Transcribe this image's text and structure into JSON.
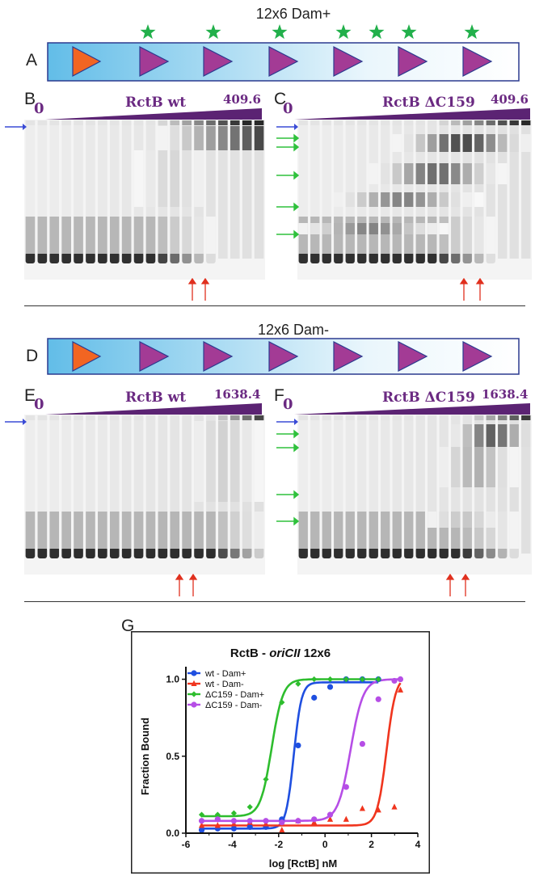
{
  "panels": {
    "A": "A",
    "B": "B",
    "C": "C",
    "D": "D",
    "E": "E",
    "F": "F",
    "G": "G"
  },
  "construct_top": {
    "title": "12x6 Dam+"
  },
  "construct_bottom": {
    "title": "12x6 Dam-"
  },
  "gel_B": {
    "zero": "0",
    "label": "RctB wt",
    "max": "409.6"
  },
  "gel_C": {
    "zero": "0",
    "label": "RctB ΔC159",
    "max": "409.6"
  },
  "gel_E": {
    "zero": "0",
    "label": "RctB wt",
    "max": "1638.4"
  },
  "gel_F": {
    "zero": "0",
    "label": "RctB ΔC159",
    "max": "1638.4"
  },
  "colors": {
    "gel_label": "#6b2a82",
    "triangle_orange": "#f26522",
    "triangle_purple": "#a33b95",
    "star_green": "#22b04b",
    "arrow_blue": "#3a4bd6",
    "arrow_green": "#2fc13c",
    "arrow_red": "#e0301e",
    "series_wt_dam_plus": "#1f4fe0",
    "series_wt_dam_minus": "#f0351e",
    "series_dc159_dam_plus": "#2ebd2e",
    "series_dc159_dam_minus": "#b64ee6"
  },
  "chart_data": {
    "type": "scatter",
    "title_prefix": "RctB - ",
    "title_italic": "oriCII",
    "title_suffix": " 12x6",
    "xlabel": "log [RctB] nM",
    "ylabel": "Fraction Bound",
    "xlim": [
      -6,
      4
    ],
    "ylim": [
      0,
      1.05
    ],
    "xticks": [
      "-6",
      "-4",
      "-2",
      "0",
      "2",
      "4"
    ],
    "yticks": [
      "0.0",
      "0.5",
      "1.0"
    ],
    "legend_position": "top-left",
    "series": [
      {
        "name": "wt - Dam+",
        "marker": "circle",
        "color": "#1f4fe0",
        "x": [
          -5.32,
          -4.63,
          -3.93,
          -3.24,
          -2.55,
          -1.86,
          -1.16,
          -0.47,
          0.22,
          0.91,
          1.61,
          2.3
        ],
        "y": [
          0.02,
          0.03,
          0.03,
          0.04,
          0.04,
          0.09,
          0.57,
          0.88,
          0.95,
          1.0,
          1.0,
          1.0
        ],
        "fit": {
          "bottom": 0.03,
          "top": 0.98,
          "logEC50": -1.35,
          "hill": 2.6
        }
      },
      {
        "name": "wt - Dam-",
        "marker": "triangle",
        "color": "#f0351e",
        "x": [
          -5.32,
          -4.63,
          -3.93,
          -3.24,
          -2.55,
          -1.86,
          -1.16,
          -0.47,
          0.22,
          0.91,
          1.61,
          2.3,
          2.99,
          3.25
        ],
        "y": [
          0.05,
          0.05,
          0.06,
          0.07,
          0.06,
          0.02,
          0.08,
          0.07,
          0.09,
          0.09,
          0.16,
          0.15,
          0.17,
          0.93
        ],
        "fit": {
          "bottom": 0.05,
          "top": 1.02,
          "logEC50": 2.65,
          "hill": 2.2
        }
      },
      {
        "name": "ΔC159 - Dam+",
        "marker": "diamond",
        "color": "#2ebd2e",
        "x": [
          -5.32,
          -4.63,
          -3.93,
          -3.24,
          -2.55,
          -1.86,
          -1.16,
          -0.47,
          0.22,
          0.91,
          1.61,
          2.3
        ],
        "y": [
          0.12,
          0.12,
          0.13,
          0.17,
          0.35,
          0.85,
          0.97,
          1.0,
          1.0,
          1.0,
          1.0,
          1.0
        ],
        "fit": {
          "bottom": 0.11,
          "top": 1.0,
          "logEC50": -2.3,
          "hill": 1.8
        }
      },
      {
        "name": "ΔC159 - Dam-",
        "marker": "circle",
        "color": "#b64ee6",
        "x": [
          -5.32,
          -4.63,
          -3.93,
          -3.24,
          -2.55,
          -1.86,
          -1.16,
          -0.47,
          0.22,
          0.91,
          1.61,
          2.3,
          2.99,
          3.25
        ],
        "y": [
          0.08,
          0.09,
          0.08,
          0.08,
          0.08,
          0.07,
          0.08,
          0.09,
          0.12,
          0.3,
          0.58,
          0.87,
          0.99,
          1.0
        ],
        "fit": {
          "bottom": 0.08,
          "top": 1.0,
          "logEC50": 1.1,
          "hill": 1.6
        }
      }
    ]
  }
}
